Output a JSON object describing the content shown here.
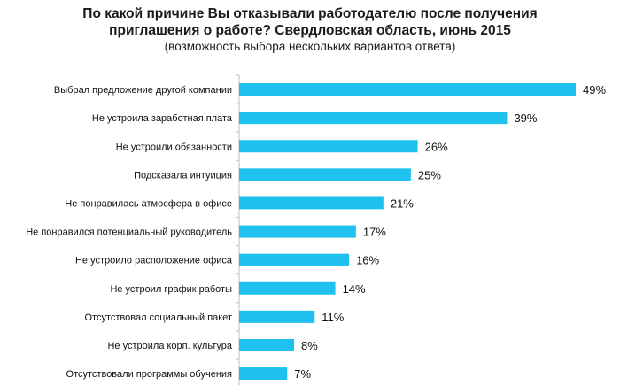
{
  "header": {
    "title_line1": "По какой причине Вы отказывали работодателю после получения",
    "title_line2": "приглашения о работе? Свердловская область, июнь 2015",
    "subtitle": "(возможность выбора нескольких вариантов ответа)"
  },
  "chart_data": {
    "type": "bar",
    "orientation": "horizontal",
    "title": "По какой причине Вы отказывали работодателю после получения приглашения о работе? Свердловская область, июнь 2015",
    "subtitle": "(возможность выбора нескольких вариантов ответа)",
    "categories": [
      "Выбрал предложение другой компании",
      "Не устроила заработная плата",
      "Не устроили обязанности",
      "Подсказала интуиция",
      "Не понравилась атмосфера в офисе",
      "Не понравился потенциальный руководитель",
      "Не устроило расположение офиса",
      "Не устроил график работы",
      "Отсутствовал социальный пакет",
      "Не устроила корп. культура",
      "Отсутствовали программы обучения"
    ],
    "values": [
      49,
      39,
      26,
      25,
      21,
      17,
      16,
      14,
      11,
      8,
      7
    ],
    "value_labels": [
      "49%",
      "39%",
      "26%",
      "25%",
      "21%",
      "17%",
      "16%",
      "14%",
      "11%",
      "8%",
      "7%"
    ],
    "unit": "%",
    "xlim": [
      0,
      49
    ],
    "bar_color": "#1fc1ef",
    "axis_color": "#bfbfbf",
    "grid": false
  }
}
